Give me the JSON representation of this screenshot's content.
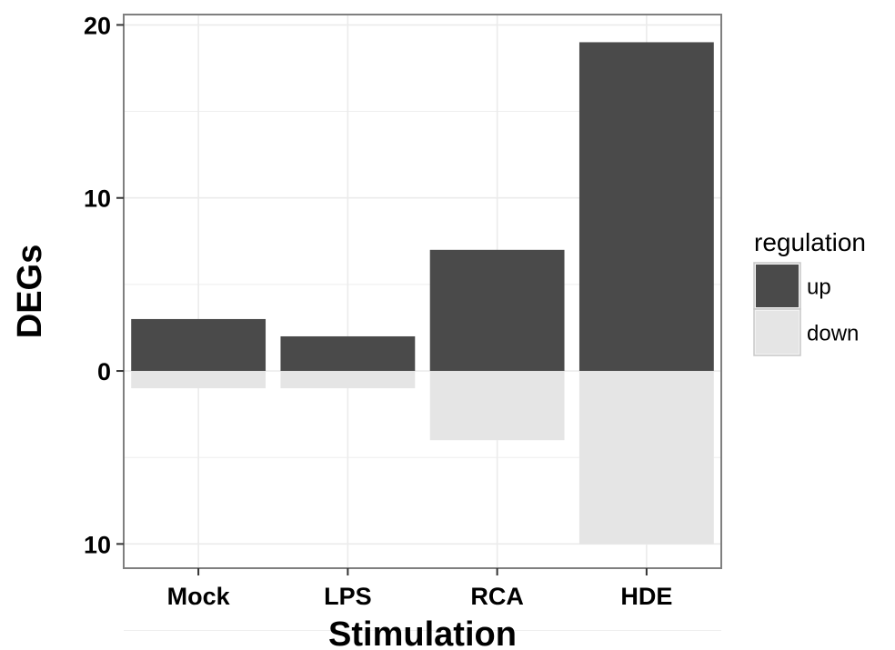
{
  "chart_data": {
    "type": "bar",
    "stacked": true,
    "categories": [
      "Mock",
      "LPS",
      "RCA",
      "HDE"
    ],
    "series": [
      {
        "name": "up",
        "values": [
          3,
          2,
          7,
          19
        ],
        "color": "#4a4a4a"
      },
      {
        "name": "down",
        "values": [
          -1,
          -1,
          -4,
          -10
        ],
        "color": "#e5e5e5"
      }
    ],
    "xlabel": "Stimulation",
    "ylabel": "DEGs",
    "ylim": [
      -11.4,
      20.6
    ],
    "yticks": [
      20,
      10,
      0,
      -10
    ],
    "ytick_labels": [
      "20",
      "10",
      "0",
      "10"
    ],
    "legend": {
      "title": "regulation",
      "position": "right"
    },
    "grid": true,
    "gridline_color": "#ebebeb",
    "panel_border_color": "#7f7f7f"
  }
}
